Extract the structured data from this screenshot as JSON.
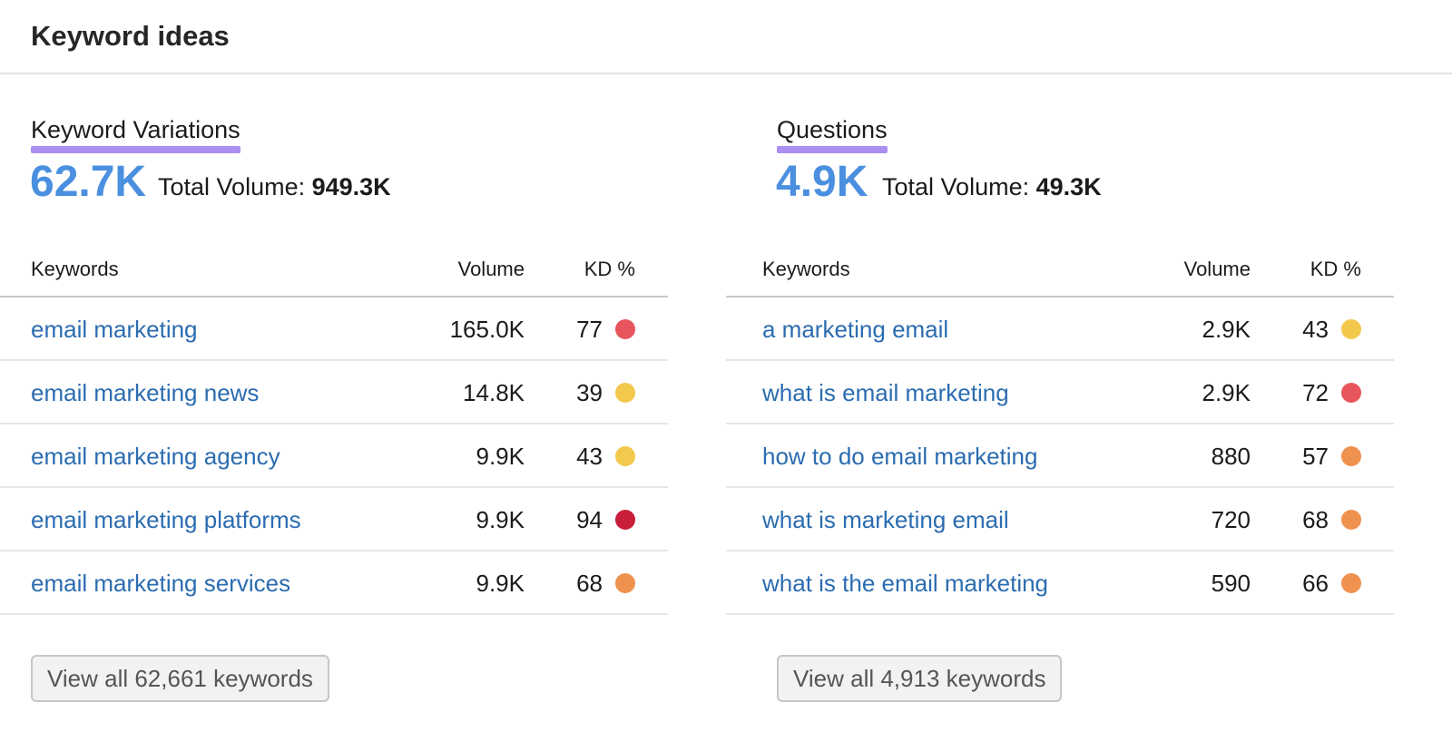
{
  "header": {
    "title": "Keyword ideas"
  },
  "colors": {
    "accent_blue": "#4a8fe0",
    "link_blue": "#2b6cb0",
    "underline_purple": "#a98ff0",
    "kd_red": "#e8555c",
    "kd_dark_red": "#c81e3a",
    "kd_yellow": "#f2c94c",
    "kd_orange": "#ef914f"
  },
  "panels": [
    {
      "title": "Keyword Variations",
      "count": "62.7K",
      "total_volume_label": "Total Volume:",
      "total_volume_value": "949.3K",
      "columns": {
        "keyword": "Keywords",
        "volume": "Volume",
        "kd": "KD %"
      },
      "rows": [
        {
          "keyword": "email marketing",
          "volume": "165.0K",
          "kd": "77",
          "kd_color": "#e8555c"
        },
        {
          "keyword": "email marketing news",
          "volume": "14.8K",
          "kd": "39",
          "kd_color": "#f2c94c"
        },
        {
          "keyword": "email marketing agency",
          "volume": "9.9K",
          "kd": "43",
          "kd_color": "#f2c94c"
        },
        {
          "keyword": "email marketing platforms",
          "volume": "9.9K",
          "kd": "94",
          "kd_color": "#c81e3a"
        },
        {
          "keyword": "email marketing services",
          "volume": "9.9K",
          "kd": "68",
          "kd_color": "#ef914f"
        }
      ],
      "view_all_label": "View all 62,661 keywords"
    },
    {
      "title": "Questions",
      "count": "4.9K",
      "total_volume_label": "Total Volume:",
      "total_volume_value": "49.3K",
      "columns": {
        "keyword": "Keywords",
        "volume": "Volume",
        "kd": "KD %"
      },
      "rows": [
        {
          "keyword": "a marketing email",
          "volume": "2.9K",
          "kd": "43",
          "kd_color": "#f2c94c"
        },
        {
          "keyword": "what is email marketing",
          "volume": "2.9K",
          "kd": "72",
          "kd_color": "#e8555c"
        },
        {
          "keyword": "how to do email marketing",
          "volume": "880",
          "kd": "57",
          "kd_color": "#ef914f"
        },
        {
          "keyword": "what is marketing email",
          "volume": "720",
          "kd": "68",
          "kd_color": "#ef914f"
        },
        {
          "keyword": "what is the email marketing",
          "volume": "590",
          "kd": "66",
          "kd_color": "#ef914f"
        }
      ],
      "view_all_label": "View all 4,913 keywords"
    }
  ]
}
